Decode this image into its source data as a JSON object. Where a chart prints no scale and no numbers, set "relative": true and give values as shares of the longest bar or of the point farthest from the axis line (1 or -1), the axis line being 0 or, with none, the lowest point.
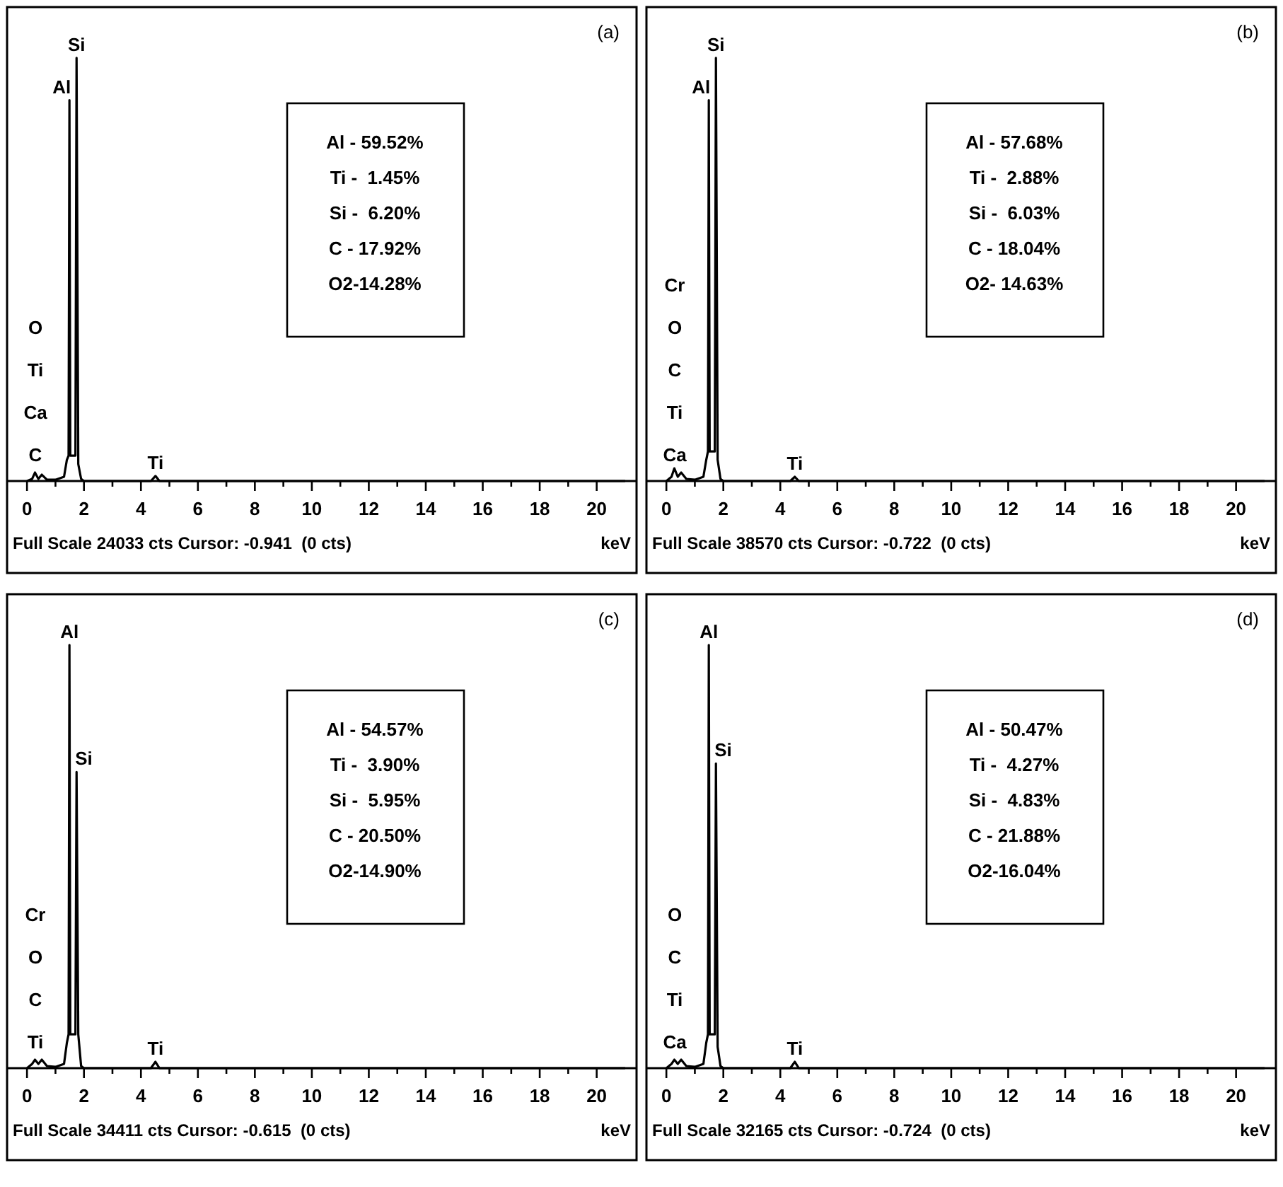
{
  "chart_data": [
    {
      "type": "line",
      "title": "(a)",
      "xlabel": "keV",
      "relative": true,
      "xlim": [
        -0.6,
        21.3
      ],
      "xticks": [
        0,
        {
          "value": 1,
          "label": null
        },
        2,
        {
          "value": 3,
          "label": null
        },
        4,
        {
          "value": 5,
          "label": null
        },
        6,
        {
          "value": 7,
          "label": null
        },
        8,
        {
          "value": 9,
          "label": null
        },
        10,
        {
          "value": 11,
          "label": null
        },
        12,
        {
          "value": 13,
          "label": null
        },
        14,
        {
          "value": 15,
          "label": null
        },
        16,
        {
          "value": 17,
          "label": null
        },
        18,
        {
          "value": 19,
          "label": null
        },
        20
      ],
      "x": [
        0,
        0.18,
        0.28,
        0.4,
        0.52,
        0.7,
        1.0,
        1.3,
        1.4,
        1.46,
        1.49,
        1.52,
        1.6,
        1.7,
        1.74,
        1.8,
        1.9,
        2.0,
        4.35,
        4.51,
        4.65,
        21
      ],
      "series": [
        {
          "color": "#000000",
          "values": [
            0,
            0.005,
            0.02,
            0.005,
            0.015,
            0.003,
            0.003,
            0.01,
            0.05,
            0.06,
            0.9,
            0.06,
            0.06,
            0.06,
            1,
            0.04,
            0.005,
            0,
            0,
            0.012,
            0,
            0
          ]
        }
      ],
      "annotations": [
        "Al - 59.52%\nTi -  1.45%\nSi -  6.20%\nC - 17.92%\nO2-14.28%",
        "O",
        "Ti",
        "Ca",
        "C",
        {
          "text": "Si",
          "x": 1.74,
          "y": 1
        },
        {
          "text": "Al",
          "x": 1.49,
          "y": 0.9
        },
        {
          "text": "Ti",
          "x": 4.51,
          "y": 0.012
        },
        "Full Scale 24033 cts Cursor: -0.941  (0 cts)"
      ]
    },
    {
      "type": "line",
      "title": "(b)",
      "xlabel": "keV",
      "relative": true,
      "xlim": [
        -0.6,
        21.3
      ],
      "xticks": [
        0,
        {
          "value": 1,
          "label": null
        },
        2,
        {
          "value": 3,
          "label": null
        },
        4,
        {
          "value": 5,
          "label": null
        },
        6,
        {
          "value": 7,
          "label": null
        },
        8,
        {
          "value": 9,
          "label": null
        },
        10,
        {
          "value": 11,
          "label": null
        },
        12,
        {
          "value": 13,
          "label": null
        },
        14,
        {
          "value": 15,
          "label": null
        },
        16,
        {
          "value": 17,
          "label": null
        },
        18,
        {
          "value": 19,
          "label": null
        },
        20
      ],
      "x": [
        0,
        0.18,
        0.28,
        0.4,
        0.52,
        0.7,
        1.0,
        1.3,
        1.4,
        1.46,
        1.49,
        1.52,
        1.6,
        1.7,
        1.74,
        1.8,
        1.9,
        2.0,
        4.35,
        4.51,
        4.65,
        21
      ],
      "series": [
        {
          "color": "#000000",
          "values": [
            0,
            0.01,
            0.03,
            0.01,
            0.02,
            0.005,
            0.003,
            0.01,
            0.05,
            0.07,
            0.9,
            0.07,
            0.07,
            0.07,
            1,
            0.05,
            0.005,
            0,
            0,
            0.01,
            0,
            0
          ]
        }
      ],
      "annotations": [
        "Al - 57.68%\nTi -  2.88%\nSi -  6.03%\nC - 18.04%\nO2- 14.63%",
        "Cr",
        "O",
        "C",
        "Ti",
        "Ca",
        {
          "text": "Si",
          "x": 1.74,
          "y": 1
        },
        {
          "text": "Al",
          "x": 1.49,
          "y": 0.9
        },
        {
          "text": "Ti",
          "x": 4.51,
          "y": 0.01
        },
        "Full Scale 38570 cts Cursor: -0.722  (0 cts)"
      ]
    },
    {
      "type": "line",
      "title": "(c)",
      "xlabel": "keV",
      "relative": true,
      "xlim": [
        -0.6,
        21.3
      ],
      "xticks": [
        0,
        {
          "value": 1,
          "label": null
        },
        2,
        {
          "value": 3,
          "label": null
        },
        4,
        {
          "value": 5,
          "label": null
        },
        6,
        {
          "value": 7,
          "label": null
        },
        8,
        {
          "value": 9,
          "label": null
        },
        10,
        {
          "value": 11,
          "label": null
        },
        12,
        {
          "value": 13,
          "label": null
        },
        14,
        {
          "value": 15,
          "label": null
        },
        16,
        {
          "value": 17,
          "label": null
        },
        18,
        {
          "value": 19,
          "label": null
        },
        20
      ],
      "x": [
        0,
        0.18,
        0.28,
        0.4,
        0.52,
        0.7,
        1.0,
        1.3,
        1.4,
        1.46,
        1.49,
        1.52,
        1.6,
        1.7,
        1.74,
        1.8,
        1.9,
        2.0,
        4.35,
        4.51,
        4.65,
        21
      ],
      "series": [
        {
          "color": "#000000",
          "values": [
            0,
            0.01,
            0.02,
            0.01,
            0.02,
            0.005,
            0.003,
            0.01,
            0.06,
            0.08,
            1,
            0.08,
            0.08,
            0.08,
            0.7,
            0.08,
            0.005,
            0,
            0,
            0.015,
            0,
            0
          ]
        }
      ],
      "annotations": [
        "Al - 54.57%\nTi -  3.90%\nSi -  5.95%\nC - 20.50%\nO2-14.90%",
        "Cr",
        "O",
        "C",
        "Ti",
        {
          "text": "Al",
          "x": 1.49,
          "y": 1
        },
        {
          "text": "Si",
          "x": 1.74,
          "y": 0.7
        },
        {
          "text": "Ti",
          "x": 4.51,
          "y": 0.015
        },
        "Full Scale 34411 cts Cursor: -0.615  (0 cts)"
      ]
    },
    {
      "type": "line",
      "title": "(d)",
      "xlabel": "keV",
      "relative": true,
      "xlim": [
        -0.6,
        21.3
      ],
      "xticks": [
        0,
        {
          "value": 1,
          "label": null
        },
        2,
        {
          "value": 3,
          "label": null
        },
        4,
        {
          "value": 5,
          "label": null
        },
        6,
        {
          "value": 7,
          "label": null
        },
        8,
        {
          "value": 9,
          "label": null
        },
        10,
        {
          "value": 11,
          "label": null
        },
        12,
        {
          "value": 13,
          "label": null
        },
        14,
        {
          "value": 15,
          "label": null
        },
        16,
        {
          "value": 17,
          "label": null
        },
        18,
        {
          "value": 19,
          "label": null
        },
        20
      ],
      "x": [
        0,
        0.18,
        0.28,
        0.4,
        0.52,
        0.7,
        1.0,
        1.3,
        1.4,
        1.46,
        1.49,
        1.52,
        1.6,
        1.7,
        1.74,
        1.8,
        1.9,
        2.0,
        4.35,
        4.51,
        4.65,
        21
      ],
      "series": [
        {
          "color": "#000000",
          "values": [
            0,
            0.01,
            0.02,
            0.01,
            0.02,
            0.005,
            0.003,
            0.01,
            0.06,
            0.08,
            1,
            0.08,
            0.08,
            0.08,
            0.72,
            0.05,
            0.005,
            0,
            0,
            0.015,
            0,
            0
          ]
        }
      ],
      "annotations": [
        "Al - 50.47%\nTi -  4.27%\nSi -  4.83%\nC - 21.88%\nO2-16.04%",
        "O",
        "C",
        "Ti",
        "Ca",
        {
          "text": "Al",
          "x": 1.49,
          "y": 1
        },
        {
          "text": "Si",
          "x": 1.74,
          "y": 0.72
        },
        {
          "text": "Ti",
          "x": 4.51,
          "y": 0.015
        },
        "Full Scale 32165 cts Cursor: -0.724  (0 cts)"
      ]
    }
  ]
}
